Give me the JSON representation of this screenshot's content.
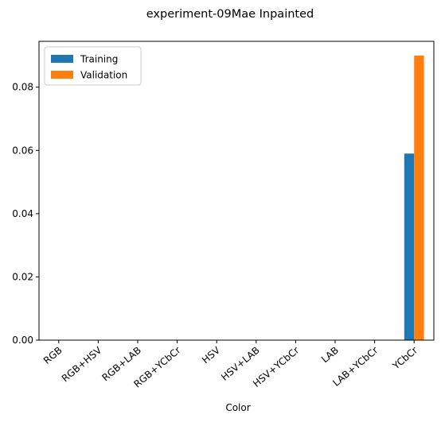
{
  "chart_data": {
    "type": "bar",
    "title": "experiment-09Mae Inpainted",
    "xlabel": "Color",
    "ylabel": "",
    "categories": [
      "RGB",
      "RGB+HSV",
      "RGB+LAB",
      "RGB+YCbCr",
      "HSV",
      "HSV+LAB",
      "HSV+YCbCr",
      "LAB",
      "LAB+YCbCr",
      "YCbCr"
    ],
    "series": [
      {
        "name": "Training",
        "color": "#1f77b4",
        "values": [
          0,
          0,
          0,
          0,
          0,
          0,
          0,
          0,
          0,
          0.059
        ]
      },
      {
        "name": "Validation",
        "color": "#ff7f0e",
        "values": [
          0,
          0,
          0,
          0,
          0,
          0,
          0,
          0,
          0,
          0.09
        ]
      }
    ],
    "ylim": [
      0,
      0.0945
    ],
    "yticks": [
      0.0,
      0.02,
      0.04,
      0.06,
      0.08
    ],
    "ytick_labels": [
      "0.00",
      "0.02",
      "0.04",
      "0.06",
      "0.08"
    ],
    "grid": false,
    "legend_position": "top-left"
  }
}
